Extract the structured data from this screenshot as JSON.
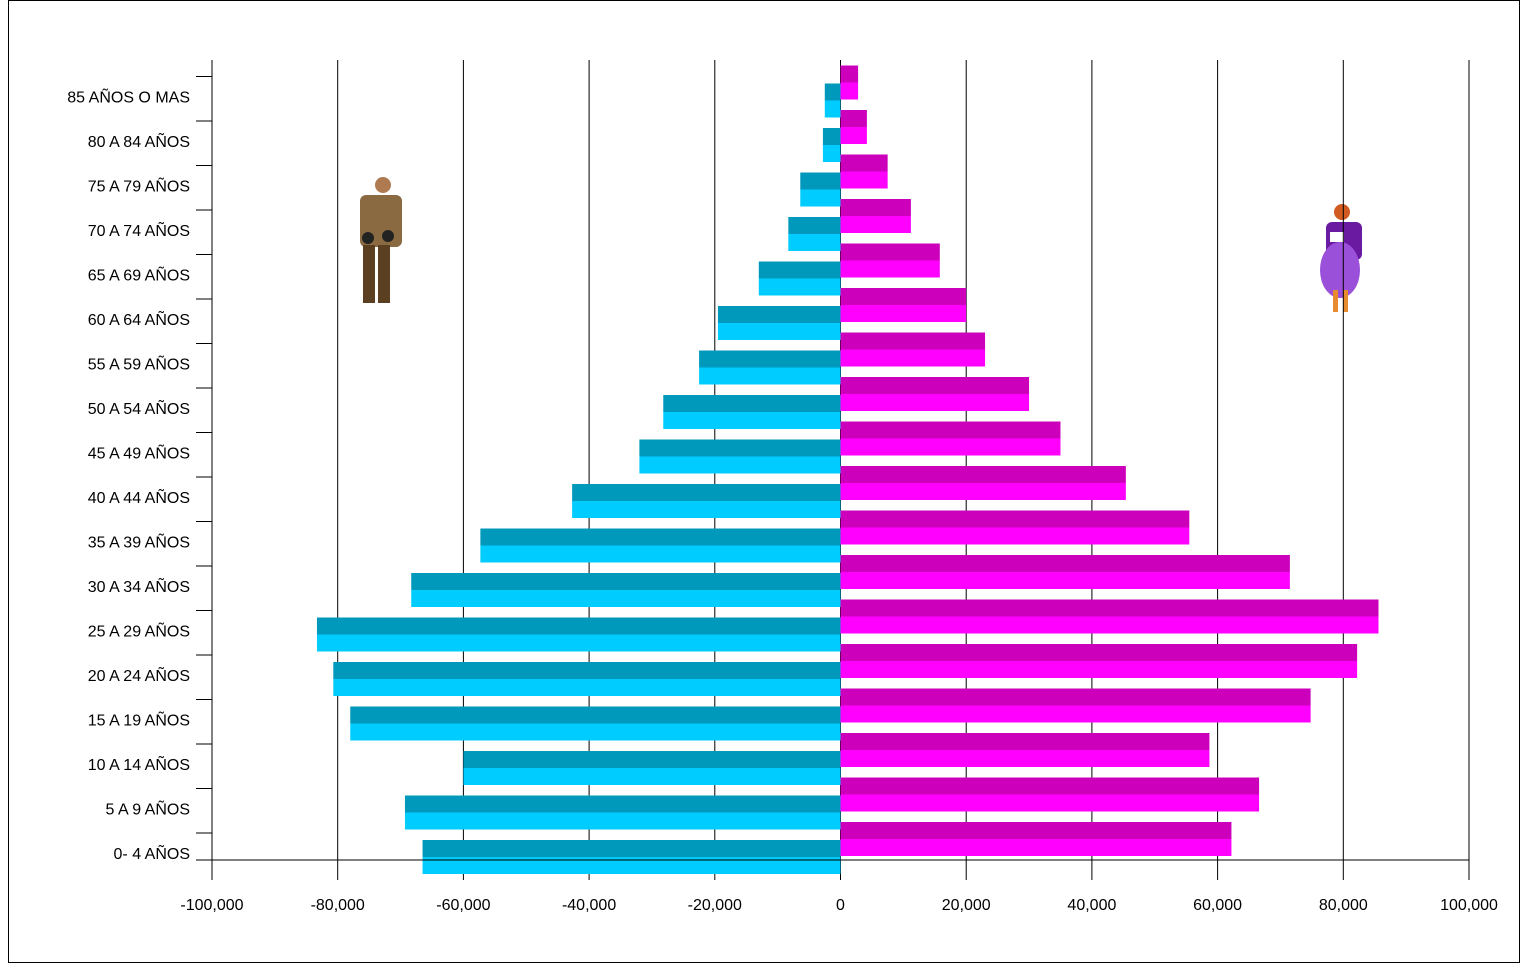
{
  "chart_data": {
    "type": "pyramid",
    "categories": [
      "0- 4 AÑOS",
      "5 A 9 AÑOS",
      "10 A 14 AÑOS",
      "15 A 19 AÑOS",
      "20 A 24 AÑOS",
      "25 A 29 AÑOS",
      "30 A 34 AÑOS",
      "35 A 39 AÑOS",
      "40 A 44 AÑOS",
      "45 A 49 AÑOS",
      "50 A 54 AÑOS",
      "55 A 59 AÑOS",
      "60 A 64 AÑOS",
      "65 A 69 AÑOS",
      "70 A 74 AÑOS",
      "75 A 79 AÑOS",
      "80 A 84 AÑOS",
      "85 AÑOS O MAS"
    ],
    "series": [
      {
        "colors": [
          "#0099bb",
          "#00ccff"
        ],
        "values": [
          -66500,
          -69300,
          -60000,
          -78000,
          -80700,
          -83300,
          -68300,
          -57300,
          -42700,
          -32000,
          -28200,
          -22500,
          -19500,
          -13000,
          -8300,
          -6400,
          -2800,
          -2500
        ]
      },
      {
        "colors": [
          "#cc00bb",
          "#ff00ff"
        ],
        "values": [
          62200,
          66600,
          58700,
          74800,
          82200,
          85600,
          71500,
          55500,
          45400,
          35000,
          30000,
          23000,
          20000,
          15800,
          11200,
          7500,
          4200,
          2800
        ]
      }
    ],
    "xlim": [
      -100000,
      100000
    ],
    "xticks": [
      {
        "value": -100000,
        "label": "-100,000"
      },
      {
        "value": -80000,
        "label": "-80,000"
      },
      {
        "value": -60000,
        "label": "-60,000"
      },
      {
        "value": -40000,
        "label": "-40,000"
      },
      {
        "value": -20000,
        "label": "-20,000"
      },
      0,
      {
        "value": 20000,
        "label": "20,000"
      },
      {
        "value": 40000,
        "label": "40,000"
      },
      {
        "value": 60000,
        "label": "60,000"
      },
      {
        "value": 80000,
        "label": "80,000"
      },
      {
        "value": 100000,
        "label": "100,000"
      }
    ],
    "grid": true
  }
}
